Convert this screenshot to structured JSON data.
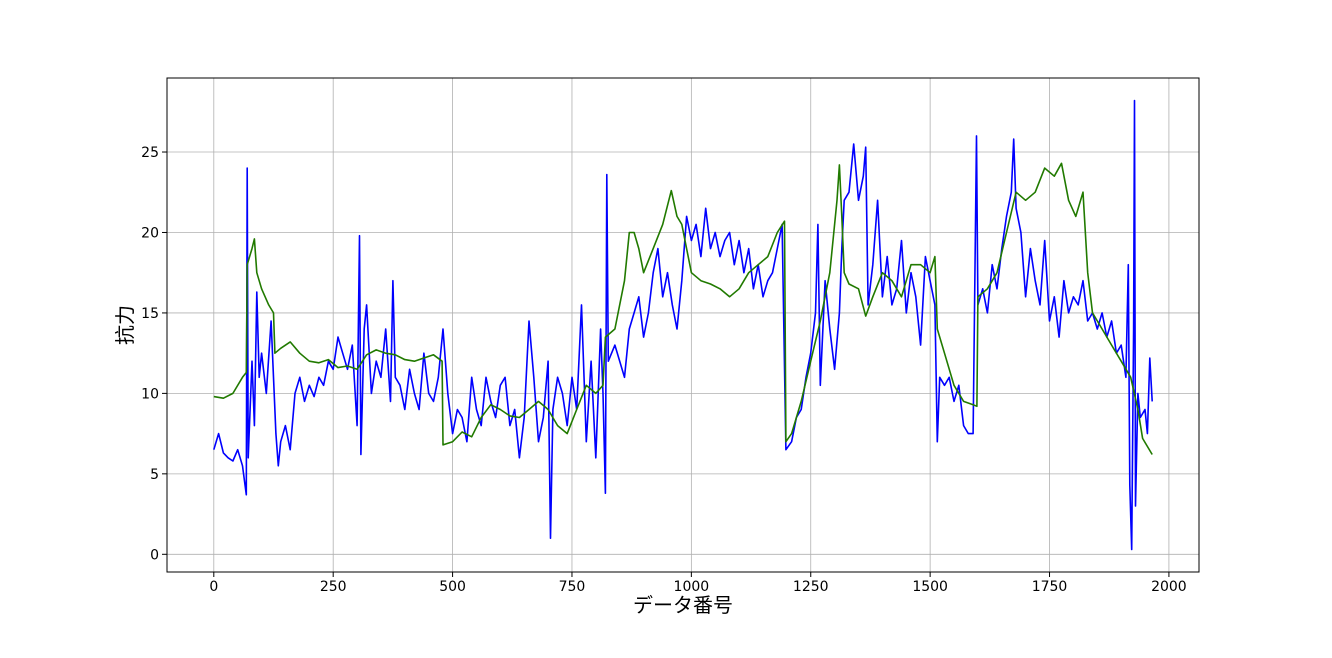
{
  "chart_data": {
    "type": "line",
    "xlabel": "データ番号",
    "ylabel": "抗力",
    "xlim": [
      -98,
      2063
    ],
    "ylim": [
      -1.1,
      29.6
    ],
    "xticks": [
      0,
      250,
      500,
      750,
      1000,
      1250,
      1500,
      1750,
      2000
    ],
    "yticks": [
      0,
      5,
      10,
      15,
      20,
      25
    ],
    "grid": true,
    "series": [
      {
        "color": "#0000ff",
        "x": [
          0,
          10,
          20,
          30,
          40,
          50,
          60,
          68,
          70,
          72,
          80,
          85,
          90,
          95,
          100,
          110,
          120,
          130,
          135,
          140,
          150,
          160,
          170,
          180,
          190,
          200,
          210,
          220,
          230,
          240,
          250,
          260,
          270,
          280,
          290,
          300,
          305,
          308,
          315,
          320,
          330,
          340,
          350,
          360,
          370,
          375,
          380,
          390,
          400,
          410,
          420,
          430,
          440,
          450,
          460,
          470,
          480,
          490,
          500,
          510,
          520,
          530,
          540,
          550,
          560,
          570,
          580,
          590,
          600,
          610,
          620,
          630,
          640,
          650,
          660,
          670,
          680,
          690,
          700,
          705,
          710,
          720,
          730,
          740,
          750,
          760,
          770,
          780,
          790,
          800,
          810,
          815,
          820,
          823,
          826,
          840,
          860,
          870,
          880,
          890,
          900,
          910,
          920,
          930,
          940,
          950,
          960,
          970,
          980,
          990,
          1000,
          1010,
          1020,
          1030,
          1040,
          1050,
          1060,
          1070,
          1080,
          1090,
          1100,
          1110,
          1120,
          1130,
          1140,
          1150,
          1160,
          1170,
          1180,
          1190,
          1198,
          1210,
          1220,
          1230,
          1240,
          1250,
          1260,
          1265,
          1270,
          1280,
          1290,
          1300,
          1310,
          1315,
          1320,
          1330,
          1340,
          1350,
          1360,
          1365,
          1370,
          1380,
          1390,
          1400,
          1410,
          1420,
          1430,
          1440,
          1450,
          1460,
          1470,
          1480,
          1490,
          1500,
          1510,
          1515,
          1520,
          1530,
          1540,
          1550,
          1560,
          1570,
          1580,
          1590,
          1597,
          1600,
          1610,
          1620,
          1630,
          1640,
          1650,
          1660,
          1670,
          1675,
          1680,
          1690,
          1700,
          1710,
          1720,
          1730,
          1740,
          1750,
          1760,
          1770,
          1780,
          1790,
          1800,
          1810,
          1820,
          1830,
          1840,
          1850,
          1860,
          1870,
          1880,
          1890,
          1900,
          1910,
          1915,
          1918,
          1922,
          1926,
          1928,
          1930,
          1935,
          1940,
          1950,
          1955,
          1960,
          1965
        ],
        "values": [
          6.5,
          7.5,
          6.3,
          6.0,
          5.8,
          6.5,
          5.5,
          3.7,
          24.0,
          6.0,
          12.0,
          8.0,
          16.3,
          11.0,
          12.5,
          10.0,
          14.5,
          7.5,
          5.5,
          7.0,
          8.0,
          6.5,
          10.0,
          11.0,
          9.5,
          10.5,
          9.8,
          11.0,
          10.5,
          12.0,
          11.5,
          13.5,
          12.5,
          11.5,
          13.0,
          8.0,
          19.8,
          6.2,
          14.0,
          15.5,
          10.0,
          12.0,
          11.0,
          14.0,
          9.5,
          17.0,
          11.0,
          10.5,
          9.0,
          11.5,
          10.0,
          9.0,
          12.5,
          10.0,
          9.5,
          11.0,
          14.0,
          10.0,
          7.5,
          9.0,
          8.5,
          7.0,
          11.0,
          9.0,
          8.0,
          11.0,
          9.5,
          8.5,
          10.5,
          11.0,
          8.0,
          9.0,
          6.0,
          8.5,
          14.5,
          11.0,
          7.0,
          8.5,
          12.0,
          1.0,
          9.0,
          11.0,
          10.0,
          8.0,
          11.0,
          9.0,
          15.5,
          7.0,
          12.0,
          6.0,
          14.0,
          10.0,
          3.8,
          23.6,
          12.0,
          13.0,
          11.0,
          14.0,
          15.0,
          16.0,
          13.5,
          15.0,
          17.5,
          19.0,
          16.0,
          17.5,
          15.5,
          14.0,
          17.0,
          21.0,
          19.5,
          20.5,
          18.5,
          21.5,
          19.0,
          20.0,
          18.5,
          19.5,
          20.0,
          18.0,
          19.5,
          17.5,
          19.0,
          16.5,
          18.0,
          16.0,
          17.0,
          17.5,
          19.0,
          20.5,
          6.5,
          7.0,
          8.5,
          9.0,
          11.0,
          12.5,
          15.0,
          20.5,
          10.5,
          17.0,
          14.0,
          11.5,
          15.0,
          19.0,
          22.0,
          22.5,
          25.5,
          22.0,
          23.5,
          25.3,
          15.5,
          18.0,
          22.0,
          16.0,
          18.5,
          15.5,
          16.5,
          19.5,
          15.0,
          17.5,
          16.0,
          13.0,
          18.5,
          17.0,
          15.5,
          7.0,
          11.0,
          10.5,
          11.0,
          9.5,
          10.5,
          8.0,
          7.5,
          7.5,
          26.0,
          15.5,
          16.5,
          15.0,
          18.0,
          16.5,
          19.0,
          21.0,
          22.5,
          25.8,
          21.5,
          20.0,
          16.0,
          19.0,
          17.0,
          15.5,
          19.5,
          14.5,
          16.0,
          13.5,
          17.0,
          15.0,
          16.0,
          15.5,
          17.0,
          14.5,
          15.0,
          14.0,
          15.0,
          13.5,
          14.5,
          12.5,
          13.0,
          11.0,
          18.0,
          4.3,
          0.3,
          14.0,
          28.2,
          3.0,
          10.0,
          8.5,
          9.0,
          7.5,
          12.2,
          9.5
        ]
      },
      {
        "color": "#217a00",
        "x": [
          0,
          20,
          40,
          60,
          68,
          70,
          80,
          85,
          90,
          100,
          115,
          125,
          128,
          140,
          160,
          180,
          200,
          220,
          240,
          260,
          280,
          300,
          320,
          340,
          360,
          380,
          400,
          420,
          440,
          460,
          478,
          480,
          500,
          520,
          540,
          560,
          580,
          600,
          620,
          640,
          660,
          680,
          700,
          720,
          740,
          760,
          780,
          800,
          815,
          820,
          840,
          860,
          870,
          880,
          890,
          900,
          920,
          940,
          958,
          970,
          980,
          990,
          1000,
          1020,
          1040,
          1060,
          1080,
          1100,
          1120,
          1140,
          1160,
          1180,
          1195,
          1198,
          1210,
          1230,
          1250,
          1270,
          1290,
          1305,
          1310,
          1315,
          1320,
          1330,
          1350,
          1365,
          1380,
          1400,
          1420,
          1440,
          1460,
          1480,
          1500,
          1510,
          1515,
          1530,
          1550,
          1570,
          1590,
          1598,
          1600,
          1620,
          1640,
          1660,
          1680,
          1700,
          1720,
          1740,
          1760,
          1775,
          1790,
          1805,
          1820,
          1830,
          1840,
          1860,
          1880,
          1900,
          1920,
          1935,
          1945,
          1965
        ],
        "values": [
          9.8,
          9.7,
          10.0,
          11.0,
          11.3,
          18.0,
          19.0,
          19.6,
          17.5,
          16.5,
          15.5,
          15.0,
          12.5,
          12.8,
          13.2,
          12.5,
          12.0,
          11.9,
          12.1,
          11.6,
          11.7,
          11.5,
          12.4,
          12.7,
          12.5,
          12.4,
          12.1,
          12.0,
          12.2,
          12.4,
          12.0,
          6.8,
          7.0,
          7.6,
          7.3,
          8.5,
          9.3,
          9.0,
          8.6,
          8.5,
          9.0,
          9.5,
          9.0,
          8.0,
          7.5,
          9.0,
          10.5,
          10.0,
          10.5,
          13.5,
          14.0,
          17.0,
          20.0,
          20.0,
          19.0,
          17.5,
          19.0,
          20.5,
          22.6,
          21.0,
          20.5,
          19.0,
          17.5,
          17.0,
          16.8,
          16.5,
          16.0,
          16.5,
          17.5,
          18.0,
          18.5,
          20.0,
          20.7,
          7.0,
          7.5,
          9.5,
          12.0,
          14.5,
          17.5,
          22.0,
          24.2,
          21.0,
          17.5,
          16.8,
          16.5,
          14.8,
          16.0,
          17.5,
          17.0,
          16.0,
          18.0,
          18.0,
          17.5,
          18.5,
          14.0,
          12.5,
          10.5,
          9.5,
          9.3,
          9.2,
          16.0,
          16.5,
          17.5,
          20.0,
          22.5,
          22.0,
          22.5,
          24.0,
          23.5,
          24.3,
          22.0,
          21.0,
          22.5,
          17.5,
          15.0,
          14.0,
          13.0,
          12.0,
          11.0,
          9.0,
          7.2,
          6.2
        ]
      }
    ]
  }
}
